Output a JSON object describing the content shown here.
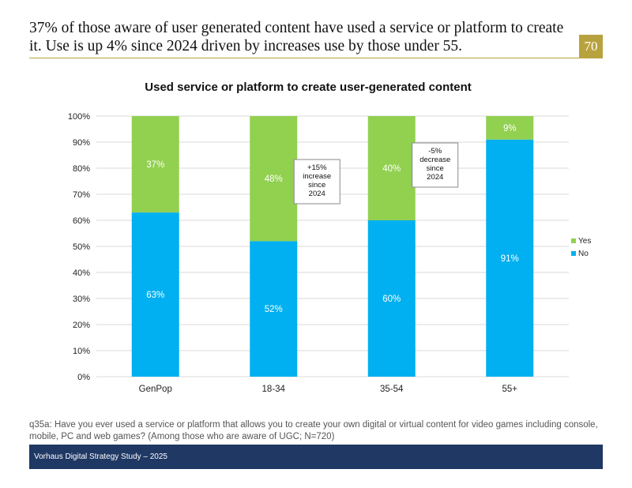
{
  "header": {
    "headline": "37% of those aware of user generated content have used a service or platform to create it. Use is up 4% since 2024 driven by increases use by those under 55.",
    "page_number": "70"
  },
  "chart_data": {
    "type": "bar",
    "stacked": true,
    "title": "Used service or platform to create user-generated content",
    "categories": [
      "GenPop",
      "18-34",
      "35-54",
      "55+"
    ],
    "series": [
      {
        "name": "No",
        "values": [
          63,
          52,
          60,
          91
        ],
        "labels": [
          "63%",
          "52%",
          "60%",
          "91%"
        ],
        "color": "#00b0f0"
      },
      {
        "name": "Yes",
        "values": [
          37,
          48,
          40,
          9
        ],
        "labels": [
          "37%",
          "48%",
          "40%",
          "9%"
        ],
        "color": "#92d050"
      }
    ],
    "ylim": [
      0,
      100
    ],
    "yticks": [
      "0%",
      "10%",
      "20%",
      "30%",
      "40%",
      "50%",
      "60%",
      "70%",
      "80%",
      "90%",
      "100%"
    ],
    "legend": [
      "Yes",
      "No"
    ],
    "legend_position": "right",
    "grid": true,
    "annotations": [
      {
        "category": "18-34",
        "lines": [
          "+15%",
          "increase",
          "since",
          "2024"
        ]
      },
      {
        "category": "35-54",
        "lines": [
          "-5%",
          "decrease",
          "since",
          "2024"
        ]
      }
    ]
  },
  "footnote": "q35a: Have you ever used a service or platform that allows you to create your own digital or virtual content for video games including console, mobile, PC and web games? (Among those who are aware of UGC; N=720)",
  "footer": {
    "text": "Vorhaus Digital Strategy Study – 2025"
  }
}
